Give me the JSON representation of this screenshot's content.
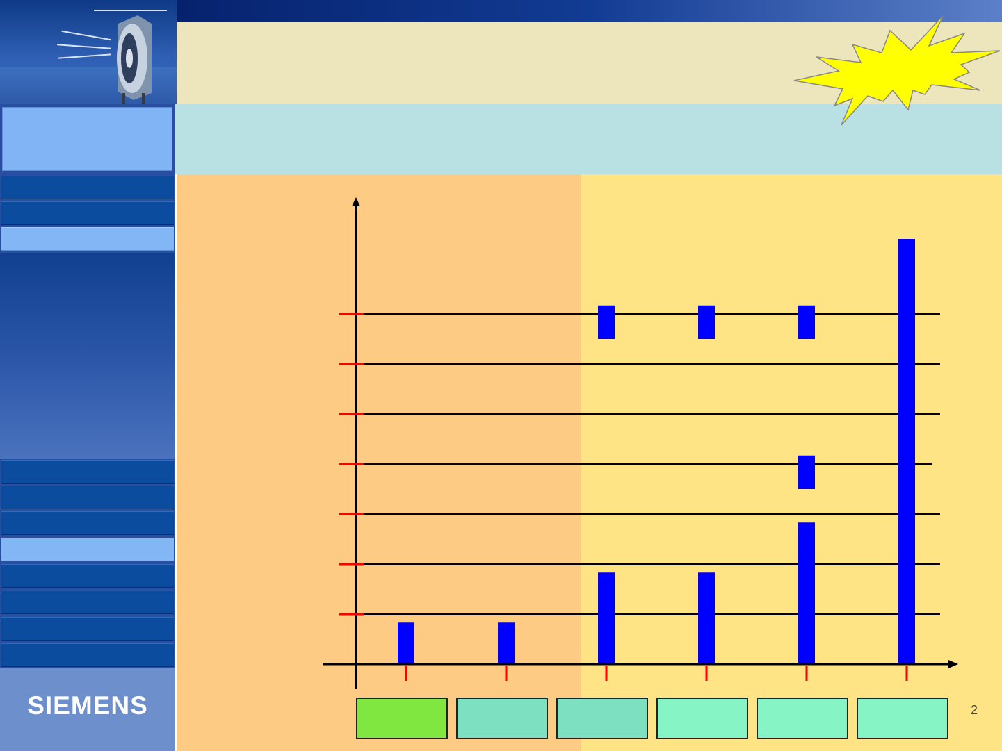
{
  "brand": {
    "logo_text": "SIEMENS"
  },
  "slide": {
    "page_number": "2"
  },
  "sidebar": {
    "nav_items": [
      {
        "active": false
      },
      {
        "active": false
      },
      {
        "active": true
      },
      {
        "active": false
      },
      {
        "active": false
      },
      {
        "active": false
      },
      {
        "active": true
      },
      {
        "active": false
      },
      {
        "active": false
      },
      {
        "active": false
      },
      {
        "active": false
      }
    ]
  },
  "colors": {
    "bar": "#0000ff",
    "tick": "#ff0000",
    "gridline": "#000000",
    "burst": "#ffff00",
    "box_green": "#80e640",
    "box_teal": "#7de0c0",
    "box_mint": "#86f4c4"
  },
  "chart_data": {
    "type": "bar",
    "categories": [
      "1",
      "2",
      "3",
      "4",
      "5",
      "6"
    ],
    "gridlines": [
      1,
      2,
      3,
      4,
      5,
      6,
      7
    ],
    "ylim": [
      0,
      9
    ],
    "segments": [
      {
        "category": 0,
        "from": 0,
        "to": 0.83
      },
      {
        "category": 1,
        "from": 0,
        "to": 0.83
      },
      {
        "category": 2,
        "from": 0,
        "to": 1.83
      },
      {
        "category": 2,
        "from": 6.5,
        "to": 7.17
      },
      {
        "category": 3,
        "from": 0,
        "to": 1.83
      },
      {
        "category": 3,
        "from": 6.5,
        "to": 7.17
      },
      {
        "category": 4,
        "from": 0,
        "to": 2.83
      },
      {
        "category": 4,
        "from": 3.5,
        "to": 4.17
      },
      {
        "category": 4,
        "from": 6.5,
        "to": 7.17
      },
      {
        "category": 5,
        "from": 0,
        "to": 8.5
      }
    ],
    "boxes": [
      {
        "category": 0,
        "color": "#80e640"
      },
      {
        "category": 1,
        "color": "#7de0c0"
      },
      {
        "category": 2,
        "color": "#7de0c0"
      },
      {
        "category": 3,
        "color": "#86f4c4"
      },
      {
        "category": 4,
        "color": "#86f4c4"
      },
      {
        "category": 5,
        "color": "#86f4c4"
      }
    ],
    "grid": true,
    "legend": "none"
  }
}
